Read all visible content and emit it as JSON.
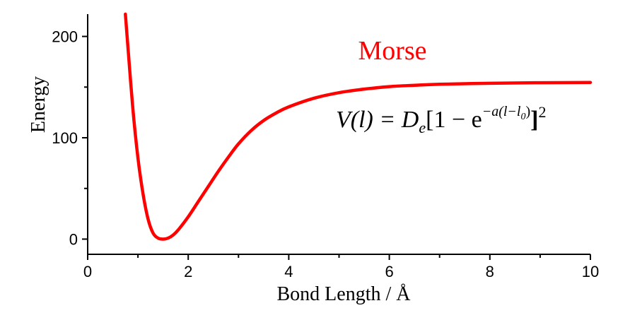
{
  "chart_data": {
    "type": "line",
    "title": "Morse",
    "annotation": {
      "lhs": "V(l) = D",
      "lhs_sub": "e",
      "bracket_open": "[1 − e",
      "exponent": "−a(l−l",
      "exponent_sub": "0",
      "exponent_close": ")",
      "bracket_close": "]",
      "power": "2"
    },
    "xlabel": "Bond Length / Å",
    "ylabel": "Energy",
    "xlim": [
      0,
      10
    ],
    "ylim": [
      -15,
      222
    ],
    "xticks": [
      0,
      2,
      4,
      6,
      8,
      10
    ],
    "yticks": [
      0,
      100,
      200
    ],
    "series": [
      {
        "color": "#ff0000",
        "x": [
          0.75,
          0.8,
          0.9,
          1.0,
          1.1,
          1.2,
          1.3,
          1.4,
          1.5,
          1.6,
          1.7,
          1.8,
          2.0,
          2.2,
          2.4,
          2.6,
          2.8,
          3.0,
          3.25,
          3.5,
          3.75,
          4.0,
          4.5,
          5.0,
          5.5,
          6.0,
          6.5,
          7.0,
          8.0,
          9.0,
          10.0
        ],
        "y": [
          222,
          190,
          128,
          80,
          45,
          20,
          6,
          1,
          0,
          1,
          4,
          9,
          22,
          37,
          52,
          67,
          81,
          94,
          107,
          117,
          124.5,
          130.5,
          139,
          144.5,
          148,
          150.5,
          151.8,
          152.8,
          153.8,
          154.3,
          154.6
        ]
      }
    ]
  }
}
